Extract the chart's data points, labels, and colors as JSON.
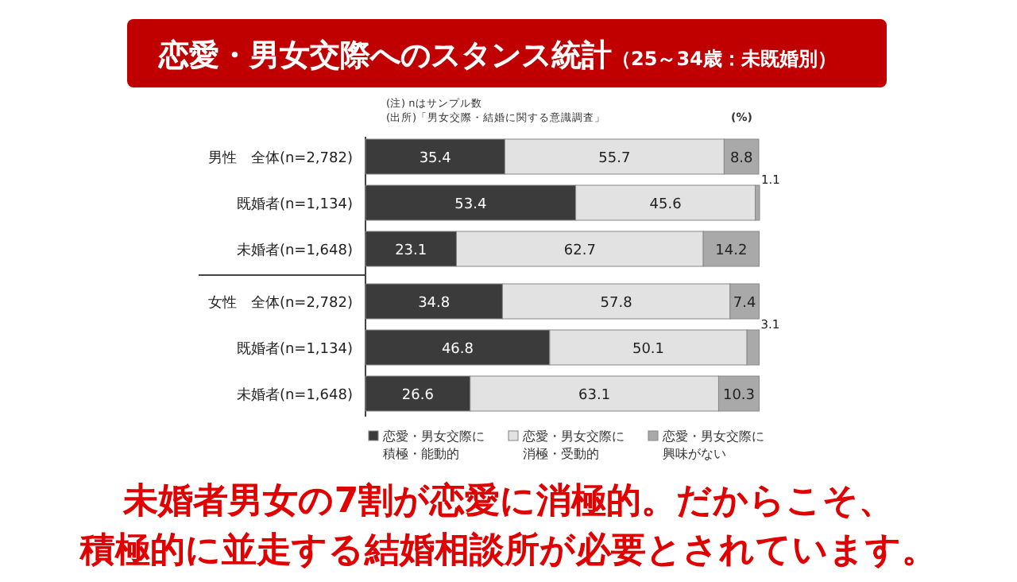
{
  "chart_data": {
    "type": "bar",
    "orientation": "horizontal",
    "stacked": true,
    "data_labels": true,
    "title": "恋愛・男女交際へのスタンス統計",
    "subtitle": "（25～34歳：未既婚別）",
    "categories": [
      "男性　全体(n=2,782)",
      "既婚者(n=1,134)",
      "未婚者(n=1,648)",
      "女性　全体(n=2,782)",
      "既婚者(n=1,134)",
      "未婚者(n=1,648)"
    ],
    "series": [
      {
        "name": "恋愛・男女交際に積極・能動的",
        "color": "#3b3b3b",
        "values": [
          35.4,
          53.4,
          23.1,
          34.8,
          46.8,
          26.6
        ]
      },
      {
        "name": "恋愛・男女交際に消極・受動的",
        "color": "#e2e2e2",
        "values": [
          55.7,
          45.6,
          62.7,
          57.8,
          50.1,
          63.1
        ]
      },
      {
        "name": "恋愛・男女交際に興味がない",
        "color": "#a9a9a9",
        "values": [
          8.8,
          1.1,
          14.2,
          7.4,
          3.1,
          10.3
        ]
      }
    ],
    "legend": "bottom",
    "annotations": [
      "(注) nはサンプル数",
      "(出所)「男女交際・結婚に関する意識調査」",
      "(%)",
      "未婚者男女の7割が恋愛に消極的。だからこそ、積極的に並走する結婚相談所が必要とされています。"
    ]
  }
}
